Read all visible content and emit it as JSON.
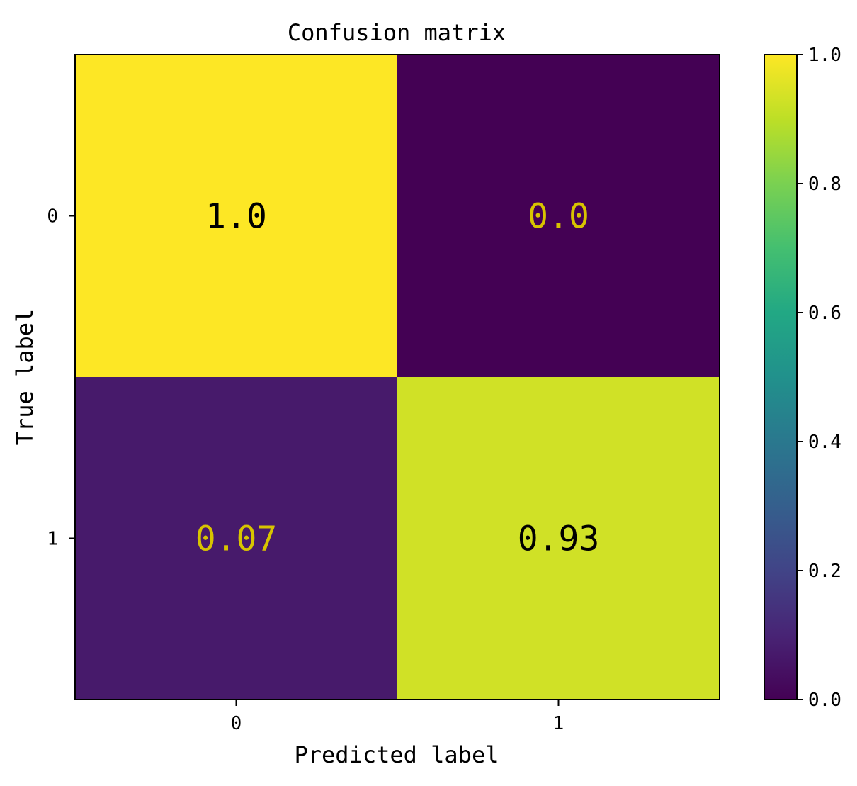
{
  "chart_data": {
    "type": "heatmap",
    "title": "Confusion matrix",
    "xlabel": "Predicted label",
    "ylabel": "True label",
    "x_categories": [
      "0",
      "1"
    ],
    "y_categories": [
      "0",
      "1"
    ],
    "values": [
      [
        1.0,
        0.0
      ],
      [
        0.07,
        0.93
      ]
    ],
    "cell_labels": [
      [
        "1.0",
        "0.0"
      ],
      [
        "0.07",
        "0.93"
      ]
    ],
    "colormap": "viridis",
    "vmin": 0.0,
    "vmax": 1.0,
    "colorbar_ticks": [
      0.0,
      0.2,
      0.4,
      0.6,
      0.8,
      1.0
    ],
    "colorbar_tick_labels": [
      "0.0",
      "0.2",
      "0.4",
      "0.6",
      "0.8",
      "1.0"
    ],
    "grid": false,
    "colors": {
      "text_on_dark": "#d8c400",
      "text_on_light": "#000000"
    }
  }
}
